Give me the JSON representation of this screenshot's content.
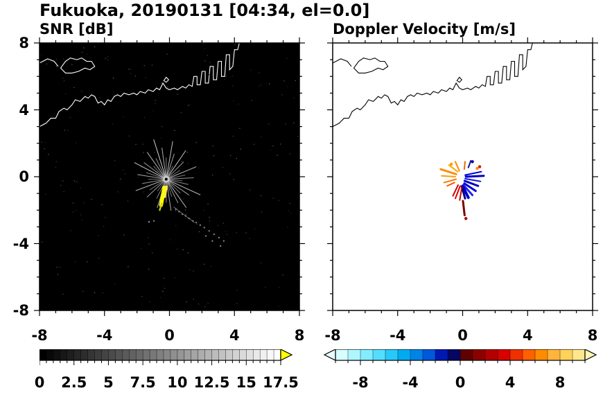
{
  "title": "Fukuoka, 20190131 [04:34, el=0.0]",
  "panels": [
    {
      "id": "snr",
      "label": "SNR [dB]",
      "background": "#000000",
      "coast_color": "#ffffff",
      "colorbar": {
        "min": 0,
        "max": 17.5,
        "step": 0.5,
        "colormap": "grayscale",
        "over_arrow_color": "#ffff00",
        "tickvalues": [
          0,
          2.5,
          5,
          7.5,
          10,
          12.5,
          15,
          17.5
        ],
        "ticklabels": [
          "0",
          "2.5",
          "5",
          "7.5",
          "10",
          "12.5",
          "15",
          "17.5"
        ]
      }
    },
    {
      "id": "doppler",
      "label": "Doppler Velocity [m/s]",
      "background": "#ffffff",
      "coast_color": "#000000",
      "colorbar": {
        "min": -10,
        "max": 10,
        "step": 1,
        "colors": [
          "#d8ffff",
          "#b0f6ff",
          "#84ecff",
          "#55ddff",
          "#28c8fa",
          "#00acf0",
          "#0084e6",
          "#0058dc",
          "#0018b4",
          "#060664",
          "#600000",
          "#8c0000",
          "#b40000",
          "#d80000",
          "#f03000",
          "#ff6000",
          "#ff8c00",
          "#ffb43c",
          "#ffd25a",
          "#ffe88c"
        ],
        "under_arrow_color": "#e8ffff",
        "over_arrow_color": "#fff6b4",
        "tickvalues": [
          -8,
          -4,
          0,
          4,
          8
        ],
        "ticklabels": [
          "-8",
          "-4",
          "0",
          "4",
          "8"
        ]
      }
    }
  ],
  "axes": {
    "xlim": [
      -8,
      8
    ],
    "ylim": [
      -8,
      8
    ],
    "xtickvalues": [
      -8,
      -4,
      0,
      4,
      8
    ],
    "xticklabels": [
      "-8",
      "-4",
      "0",
      "4",
      "8"
    ],
    "ytickvalues": [
      8,
      4,
      0,
      -4,
      -8
    ],
    "yticklabels": [
      "8",
      "4",
      "0",
      "-4",
      "-8"
    ],
    "minor_tick_interval": 1
  },
  "coastline": {
    "main": [
      [
        -8.0,
        3.0
      ],
      [
        -7.6,
        3.2
      ],
      [
        -7.3,
        3.5
      ],
      [
        -7.0,
        3.5
      ],
      [
        -6.8,
        3.9
      ],
      [
        -6.5,
        4.1
      ],
      [
        -6.3,
        4.0
      ],
      [
        -6.0,
        4.3
      ],
      [
        -5.8,
        4.6
      ],
      [
        -5.5,
        4.5
      ],
      [
        -5.2,
        4.8
      ],
      [
        -5.0,
        4.7
      ],
      [
        -4.8,
        4.9
      ],
      [
        -4.6,
        4.8
      ],
      [
        -4.4,
        4.4
      ],
      [
        -4.2,
        4.5
      ],
      [
        -4.0,
        4.3
      ],
      [
        -3.8,
        4.6
      ],
      [
        -3.6,
        4.5
      ],
      [
        -3.4,
        4.8
      ],
      [
        -3.2,
        4.9
      ],
      [
        -3.0,
        4.8
      ],
      [
        -2.8,
        5.0
      ],
      [
        -2.5,
        4.9
      ],
      [
        -2.2,
        5.0
      ],
      [
        -2.0,
        4.9
      ],
      [
        -1.8,
        5.1
      ],
      [
        -1.5,
        5.0
      ],
      [
        -1.3,
        5.2
      ],
      [
        -1.0,
        5.1
      ],
      [
        -0.8,
        5.3
      ],
      [
        -0.6,
        5.2
      ],
      [
        -0.4,
        5.6
      ],
      [
        -0.2,
        5.3
      ],
      [
        0.0,
        5.2
      ],
      [
        0.3,
        5.3
      ],
      [
        0.5,
        5.2
      ],
      [
        0.8,
        5.4
      ],
      [
        1.0,
        5.3
      ],
      [
        1.2,
        5.5
      ],
      [
        1.4,
        5.4
      ],
      [
        1.5,
        6.0
      ],
      [
        1.7,
        6.0
      ],
      [
        1.7,
        5.5
      ],
      [
        1.9,
        5.5
      ],
      [
        2.0,
        6.3
      ],
      [
        2.2,
        6.3
      ],
      [
        2.2,
        5.6
      ],
      [
        2.4,
        5.6
      ],
      [
        2.5,
        6.6
      ],
      [
        2.7,
        6.6
      ],
      [
        2.7,
        5.8
      ],
      [
        2.9,
        5.8
      ],
      [
        3.0,
        6.9
      ],
      [
        3.2,
        6.9
      ],
      [
        3.2,
        6.0
      ],
      [
        3.4,
        6.0
      ],
      [
        3.5,
        7.3
      ],
      [
        3.7,
        7.3
      ],
      [
        3.7,
        6.4
      ],
      [
        3.9,
        6.6
      ],
      [
        4.0,
        7.6
      ],
      [
        4.2,
        7.6
      ],
      [
        4.3,
        8.0
      ]
    ],
    "west_spur": [
      [
        -8.0,
        6.8
      ],
      [
        -7.5,
        7.05
      ],
      [
        -7.1,
        6.9
      ],
      [
        -6.85,
        6.6
      ]
    ],
    "island": [
      [
        -6.7,
        6.5
      ],
      [
        -6.4,
        6.9
      ],
      [
        -6.1,
        7.1
      ],
      [
        -5.7,
        7.0
      ],
      [
        -5.4,
        7.1
      ],
      [
        -5.1,
        6.9
      ],
      [
        -4.8,
        6.9
      ],
      [
        -4.6,
        6.6
      ],
      [
        -4.9,
        6.4
      ],
      [
        -5.2,
        6.5
      ],
      [
        -5.6,
        6.3
      ],
      [
        -6.0,
        6.2
      ],
      [
        -6.4,
        6.2
      ]
    ],
    "islet": [
      [
        -0.35,
        5.75
      ],
      [
        -0.2,
        5.95
      ],
      [
        -0.05,
        5.8
      ],
      [
        -0.2,
        5.65
      ]
    ]
  },
  "chart_data": [
    {
      "type": "heatmap",
      "title": "SNR [dB]",
      "xlim": [
        -8,
        8
      ],
      "ylim": [
        -8,
        8
      ],
      "colorbar_range": [
        0,
        17.5
      ],
      "radar_center": [
        -0.2,
        -0.15
      ],
      "spokes": [
        [
          3,
          1.7,
          150
        ],
        [
          12,
          1.2,
          120
        ],
        [
          22,
          2.0,
          185
        ],
        [
          32,
          1.0,
          115
        ],
        [
          44,
          1.5,
          150
        ],
        [
          55,
          2.1,
          200
        ],
        [
          63,
          0.9,
          105
        ],
        [
          72,
          1.6,
          165
        ],
        [
          80,
          2.3,
          195
        ],
        [
          90,
          1.3,
          135
        ],
        [
          98,
          1.9,
          175
        ],
        [
          108,
          2.5,
          215
        ],
        [
          117,
          1.4,
          145
        ],
        [
          126,
          2.0,
          185
        ],
        [
          135,
          1.1,
          120
        ],
        [
          144,
          1.7,
          160
        ],
        [
          153,
          2.2,
          200
        ],
        [
          162,
          1.3,
          135
        ],
        [
          171,
          1.8,
          170
        ],
        [
          180,
          1.1,
          115
        ],
        [
          190,
          1.5,
          150
        ],
        [
          200,
          2.0,
          180
        ],
        [
          212,
          1.2,
          125
        ],
        [
          222,
          1.6,
          155
        ],
        [
          233,
          0.9,
          105
        ],
        [
          243,
          1.3,
          140
        ],
        [
          252,
          1.8,
          170
        ],
        [
          261,
          1.0,
          115
        ],
        [
          270,
          1.4,
          145
        ],
        [
          279,
          1.9,
          175
        ],
        [
          288,
          1.1,
          120
        ],
        [
          297,
          1.6,
          155
        ],
        [
          306,
          2.1,
          190
        ],
        [
          316,
          1.2,
          130
        ],
        [
          326,
          1.7,
          160
        ],
        [
          336,
          2.3,
          205
        ],
        [
          347,
          1.4,
          140
        ],
        [
          355,
          1.0,
          110
        ]
      ],
      "saturated_streaks": [
        {
          "from": [
            -0.32,
            -0.65
          ],
          "to": [
            -0.52,
            -1.7
          ],
          "width": 0.24,
          "color": "#ffff00"
        },
        {
          "from": [
            -0.18,
            -0.6
          ],
          "to": [
            -0.3,
            -1.2
          ],
          "width": 0.15,
          "color": "#ffee44"
        },
        {
          "from": [
            -0.48,
            -1.6
          ],
          "to": [
            -0.6,
            -2.0
          ],
          "width": 0.1,
          "color": "#cccc00"
        }
      ],
      "trail_line": {
        "from": [
          0.25,
          -1.8
        ],
        "to": [
          1.55,
          -2.75
        ]
      },
      "trail_dots": [
        [
          0.35,
          -1.9
        ],
        [
          0.55,
          -2.05
        ],
        [
          0.75,
          -2.2
        ],
        [
          0.95,
          -2.3
        ],
        [
          1.15,
          -2.45
        ],
        [
          1.4,
          -2.6
        ],
        [
          1.6,
          -2.7
        ],
        [
          1.85,
          -2.85
        ],
        [
          2.1,
          -3.0
        ],
        [
          2.4,
          -3.2
        ],
        [
          2.7,
          -3.4
        ],
        [
          3.0,
          -3.6
        ],
        [
          3.3,
          -3.8
        ],
        [
          -1.0,
          -2.6
        ],
        [
          -1.3,
          -2.65
        ],
        [
          2.2,
          -3.5
        ],
        [
          2.6,
          -3.8
        ],
        [
          3.1,
          -4.1
        ]
      ]
    },
    {
      "type": "heatmap",
      "title": "Doppler Velocity [m/s]",
      "xlim": [
        -8,
        8
      ],
      "ylim": [
        -8,
        8
      ],
      "colorbar_range": [
        -10,
        10
      ],
      "radar_center": [
        -0.2,
        -0.15
      ],
      "segments": [
        [
          -0.4,
          0.15,
          -1.35,
          0.45,
          "#ff8c00",
          3
        ],
        [
          -0.45,
          0.0,
          -1.3,
          0.05,
          "#ff9912",
          2
        ],
        [
          -0.4,
          -0.15,
          -1.15,
          -0.35,
          "#ff7700",
          2
        ],
        [
          -0.3,
          0.3,
          -0.85,
          0.7,
          "#ffa500",
          2
        ],
        [
          -0.2,
          0.35,
          -0.45,
          0.9,
          "#ff8c00",
          2
        ],
        [
          -0.5,
          -0.35,
          -0.95,
          -0.55,
          "#ff5500",
          2
        ],
        [
          0.15,
          0.1,
          1.15,
          0.3,
          "#0000dd",
          2
        ],
        [
          0.2,
          0.0,
          1.3,
          0.05,
          "#0000c8",
          3
        ],
        [
          0.15,
          -0.12,
          1.1,
          -0.28,
          "#1414e6",
          2
        ],
        [
          0.12,
          -0.25,
          0.95,
          -0.55,
          "#0000bb",
          3
        ],
        [
          0.1,
          -0.4,
          0.8,
          -0.85,
          "#0000dd",
          3
        ],
        [
          0.05,
          -0.5,
          0.6,
          -1.1,
          "#2222ee",
          3
        ],
        [
          0.0,
          -0.55,
          0.35,
          -1.25,
          "#0000cc",
          4
        ],
        [
          -0.05,
          -0.6,
          0.15,
          -1.3,
          "#00008b",
          3
        ],
        [
          -0.15,
          -0.55,
          -0.45,
          -1.3,
          "#dd0000",
          2
        ],
        [
          -0.28,
          -0.5,
          -0.6,
          -1.15,
          "#cc0000",
          2
        ],
        [
          -0.05,
          -0.65,
          -0.18,
          -1.4,
          "#c00000",
          2
        ],
        [
          0.02,
          -1.45,
          0.12,
          -2.3,
          "#7a0000",
          3
        ],
        [
          0.1,
          0.45,
          0.15,
          0.9,
          "#e07000",
          2
        ],
        [
          0.35,
          0.55,
          0.5,
          0.95,
          "#12129a",
          2
        ]
      ],
      "dots": [
        [
          0.9,
          0.5,
          "#ff8c00"
        ],
        [
          1.05,
          0.6,
          "#cc2200"
        ],
        [
          0.6,
          0.9,
          "#0000aa"
        ],
        [
          0.2,
          -2.5,
          "#aa0000"
        ],
        [
          -0.7,
          0.75,
          "#ff9900"
        ]
      ]
    }
  ]
}
